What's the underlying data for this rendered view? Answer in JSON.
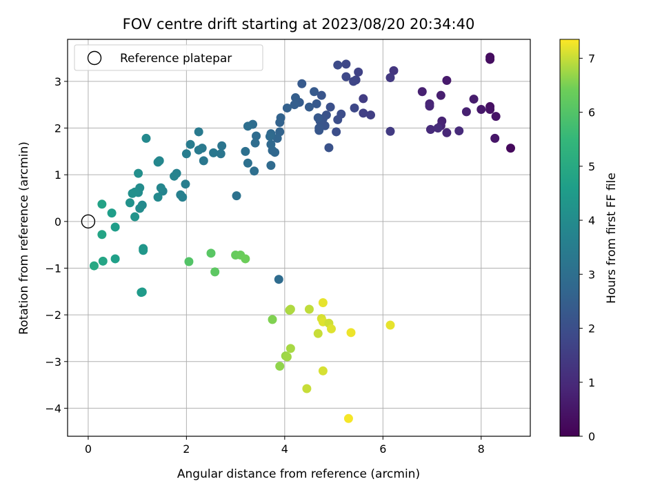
{
  "chart_data": {
    "type": "scatter",
    "title": "FOV centre drift starting at 2023/08/20 20:34:40",
    "xlabel": "Angular distance from reference (arcmin)",
    "ylabel": "Rotation from reference (arcmin)",
    "xlim": [
      -0.42,
      9.0
    ],
    "ylim": [
      -4.6,
      3.9
    ],
    "xticks": [
      0,
      2,
      4,
      6,
      8
    ],
    "yticks": [
      -4,
      -3,
      -2,
      -1,
      0,
      1,
      2,
      3
    ],
    "grid": true,
    "colormap": "viridis",
    "colorbar": {
      "label": "Hours from first FF file",
      "min": 0,
      "max": 7.35,
      "ticks": [
        0,
        1,
        2,
        3,
        4,
        5,
        6,
        7
      ]
    },
    "legend": {
      "position": "upper-left",
      "entries": [
        "Reference platepar"
      ]
    },
    "reference_point": {
      "x": 0,
      "y": 0
    },
    "points": [
      {
        "x": 8.18,
        "y": 3.52,
        "c": 0.25
      },
      {
        "x": 8.18,
        "y": 3.47,
        "c": 0.3
      },
      {
        "x": 8.18,
        "y": 2.46,
        "c": 0.35
      },
      {
        "x": 8.18,
        "y": 2.4,
        "c": 0.4
      },
      {
        "x": 8.3,
        "y": 2.25,
        "c": 0.45
      },
      {
        "x": 8.28,
        "y": 1.78,
        "c": 0.5
      },
      {
        "x": 8.6,
        "y": 1.57,
        "c": 0.2
      },
      {
        "x": 8.0,
        "y": 2.4,
        "c": 0.55
      },
      {
        "x": 7.85,
        "y": 2.62,
        "c": 0.65
      },
      {
        "x": 7.7,
        "y": 2.35,
        "c": 0.75
      },
      {
        "x": 7.3,
        "y": 3.02,
        "c": 0.6
      },
      {
        "x": 7.18,
        "y": 2.7,
        "c": 0.7
      },
      {
        "x": 7.2,
        "y": 2.15,
        "c": 0.8
      },
      {
        "x": 7.18,
        "y": 2.05,
        "c": 0.85
      },
      {
        "x": 7.3,
        "y": 1.9,
        "c": 0.9
      },
      {
        "x": 7.55,
        "y": 1.94,
        "c": 1.0
      },
      {
        "x": 6.95,
        "y": 2.52,
        "c": 0.85
      },
      {
        "x": 6.95,
        "y": 2.47,
        "c": 0.9
      },
      {
        "x": 6.97,
        "y": 1.97,
        "c": 1.0
      },
      {
        "x": 6.8,
        "y": 2.78,
        "c": 0.75
      },
      {
        "x": 7.12,
        "y": 2.0,
        "c": 1.05
      },
      {
        "x": 6.22,
        "y": 3.23,
        "c": 1.3
      },
      {
        "x": 6.15,
        "y": 3.08,
        "c": 1.4
      },
      {
        "x": 6.15,
        "y": 1.93,
        "c": 1.45
      },
      {
        "x": 5.75,
        "y": 2.28,
        "c": 1.55
      },
      {
        "x": 5.6,
        "y": 2.32,
        "c": 1.6
      },
      {
        "x": 5.6,
        "y": 2.63,
        "c": 1.5
      },
      {
        "x": 5.5,
        "y": 3.2,
        "c": 1.65
      },
      {
        "x": 5.45,
        "y": 3.03,
        "c": 1.7
      },
      {
        "x": 5.4,
        "y": 3.0,
        "c": 1.75
      },
      {
        "x": 5.42,
        "y": 2.43,
        "c": 1.8
      },
      {
        "x": 5.25,
        "y": 3.1,
        "c": 1.85
      },
      {
        "x": 5.25,
        "y": 3.37,
        "c": 1.8
      },
      {
        "x": 5.08,
        "y": 3.35,
        "c": 1.9
      },
      {
        "x": 5.15,
        "y": 2.3,
        "c": 1.95
      },
      {
        "x": 5.08,
        "y": 2.18,
        "c": 2.0
      },
      {
        "x": 5.05,
        "y": 1.92,
        "c": 2.0
      },
      {
        "x": 4.93,
        "y": 2.45,
        "c": 2.05
      },
      {
        "x": 4.9,
        "y": 1.58,
        "c": 2.1
      },
      {
        "x": 4.85,
        "y": 2.28,
        "c": 2.1
      },
      {
        "x": 4.82,
        "y": 2.05,
        "c": 2.15
      },
      {
        "x": 4.78,
        "y": 2.2,
        "c": 2.15
      },
      {
        "x": 4.75,
        "y": 2.7,
        "c": 2.2
      },
      {
        "x": 4.72,
        "y": 2.15,
        "c": 2.2
      },
      {
        "x": 4.7,
        "y": 1.95,
        "c": 2.25
      },
      {
        "x": 4.7,
        "y": 2.0,
        "c": 2.25
      },
      {
        "x": 4.68,
        "y": 2.22,
        "c": 2.3
      },
      {
        "x": 4.65,
        "y": 2.52,
        "c": 2.3
      },
      {
        "x": 4.6,
        "y": 2.78,
        "c": 2.35
      },
      {
        "x": 4.5,
        "y": 2.45,
        "c": 2.4
      },
      {
        "x": 4.35,
        "y": 2.95,
        "c": 2.35
      },
      {
        "x": 4.3,
        "y": 2.55,
        "c": 2.4
      },
      {
        "x": 4.22,
        "y": 2.65,
        "c": 2.45
      },
      {
        "x": 4.2,
        "y": 2.5,
        "c": 2.5
      },
      {
        "x": 4.05,
        "y": 2.43,
        "c": 2.55
      },
      {
        "x": 3.92,
        "y": 2.22,
        "c": 2.6
      },
      {
        "x": 3.9,
        "y": 2.12,
        "c": 2.6
      },
      {
        "x": 3.9,
        "y": 1.92,
        "c": 2.65
      },
      {
        "x": 3.85,
        "y": 1.78,
        "c": 2.7
      },
      {
        "x": 3.8,
        "y": 1.48,
        "c": 2.75
      },
      {
        "x": 3.75,
        "y": 1.52,
        "c": 2.75
      },
      {
        "x": 3.72,
        "y": 1.88,
        "c": 2.8
      },
      {
        "x": 3.72,
        "y": 1.65,
        "c": 2.8
      },
      {
        "x": 3.7,
        "y": 1.82,
        "c": 2.85
      },
      {
        "x": 3.72,
        "y": 1.2,
        "c": 2.85
      },
      {
        "x": 3.42,
        "y": 1.83,
        "c": 2.9
      },
      {
        "x": 3.4,
        "y": 1.68,
        "c": 2.95
      },
      {
        "x": 3.38,
        "y": 1.08,
        "c": 3.0
      },
      {
        "x": 3.35,
        "y": 2.08,
        "c": 2.95
      },
      {
        "x": 3.25,
        "y": 2.04,
        "c": 3.0
      },
      {
        "x": 3.25,
        "y": 1.25,
        "c": 3.05
      },
      {
        "x": 3.2,
        "y": 1.5,
        "c": 3.05
      },
      {
        "x": 3.02,
        "y": 0.55,
        "c": 3.1
      },
      {
        "x": 2.72,
        "y": 1.62,
        "c": 3.2
      },
      {
        "x": 2.7,
        "y": 1.45,
        "c": 3.25
      },
      {
        "x": 2.55,
        "y": 1.47,
        "c": 3.3
      },
      {
        "x": 2.35,
        "y": 1.3,
        "c": 3.3
      },
      {
        "x": 2.32,
        "y": 1.57,
        "c": 3.35
      },
      {
        "x": 2.25,
        "y": 1.92,
        "c": 3.4
      },
      {
        "x": 2.25,
        "y": 1.53,
        "c": 3.4
      },
      {
        "x": 2.08,
        "y": 1.65,
        "c": 3.45
      },
      {
        "x": 2.0,
        "y": 1.45,
        "c": 3.5
      },
      {
        "x": 1.98,
        "y": 0.8,
        "c": 3.55
      },
      {
        "x": 1.92,
        "y": 0.52,
        "c": 3.6
      },
      {
        "x": 1.88,
        "y": 0.57,
        "c": 3.6
      },
      {
        "x": 1.8,
        "y": 1.03,
        "c": 3.65
      },
      {
        "x": 1.75,
        "y": 0.97,
        "c": 3.7
      },
      {
        "x": 1.52,
        "y": 0.65,
        "c": 3.75
      },
      {
        "x": 1.48,
        "y": 0.72,
        "c": 3.8
      },
      {
        "x": 1.45,
        "y": 1.3,
        "c": 3.8
      },
      {
        "x": 1.42,
        "y": 1.27,
        "c": 3.85
      },
      {
        "x": 1.42,
        "y": 0.52,
        "c": 3.9
      },
      {
        "x": 1.18,
        "y": 1.78,
        "c": 3.9
      },
      {
        "x": 1.1,
        "y": 0.35,
        "c": 3.95
      },
      {
        "x": 1.05,
        "y": 0.72,
        "c": 4.0
      },
      {
        "x": 1.05,
        "y": 0.28,
        "c": 4.0
      },
      {
        "x": 1.02,
        "y": 0.62,
        "c": 4.05
      },
      {
        "x": 1.02,
        "y": 1.03,
        "c": 4.1
      },
      {
        "x": 0.95,
        "y": 0.63,
        "c": 4.1
      },
      {
        "x": 0.9,
        "y": 0.6,
        "c": 4.15
      },
      {
        "x": 0.85,
        "y": 0.4,
        "c": 4.2
      },
      {
        "x": 0.95,
        "y": 0.1,
        "c": 4.25
      },
      {
        "x": 1.12,
        "y": -0.58,
        "c": 4.3
      },
      {
        "x": 1.12,
        "y": -0.62,
        "c": 4.35
      },
      {
        "x": 1.08,
        "y": -1.52,
        "c": 4.5
      },
      {
        "x": 1.1,
        "y": -1.51,
        "c": 4.5
      },
      {
        "x": 0.55,
        "y": -0.12,
        "c": 4.55
      },
      {
        "x": 0.48,
        "y": 0.18,
        "c": 4.6
      },
      {
        "x": 0.55,
        "y": -0.8,
        "c": 4.65
      },
      {
        "x": 0.28,
        "y": 0.37,
        "c": 4.75
      },
      {
        "x": 0.28,
        "y": -0.28,
        "c": 4.8
      },
      {
        "x": 0.3,
        "y": -0.85,
        "c": 4.85
      },
      {
        "x": 0.12,
        "y": -0.95,
        "c": 4.95
      },
      {
        "x": 2.05,
        "y": -0.86,
        "c": 6.0
      },
      {
        "x": 2.5,
        "y": -0.68,
        "c": 6.1
      },
      {
        "x": 2.58,
        "y": -1.08,
        "c": 6.15
      },
      {
        "x": 3.0,
        "y": -0.72,
        "c": 6.3
      },
      {
        "x": 3.1,
        "y": -0.72,
        "c": 6.35
      },
      {
        "x": 3.2,
        "y": -0.8,
        "c": 6.4
      },
      {
        "x": 3.75,
        "y": -2.1,
        "c": 6.55
      },
      {
        "x": 3.88,
        "y": -1.24,
        "c": 2.9
      },
      {
        "x": 3.9,
        "y": -3.1,
        "c": 6.65
      },
      {
        "x": 4.02,
        "y": -2.88,
        "c": 6.7
      },
      {
        "x": 4.05,
        "y": -2.9,
        "c": 6.75
      },
      {
        "x": 4.1,
        "y": -1.9,
        "c": 6.8
      },
      {
        "x": 4.12,
        "y": -1.88,
        "c": 6.85
      },
      {
        "x": 4.12,
        "y": -2.72,
        "c": 6.8
      },
      {
        "x": 4.45,
        "y": -3.58,
        "c": 7.0
      },
      {
        "x": 4.5,
        "y": -1.88,
        "c": 6.95
      },
      {
        "x": 4.68,
        "y": -2.4,
        "c": 7.0
      },
      {
        "x": 4.78,
        "y": -1.74,
        "c": 7.2
      },
      {
        "x": 4.75,
        "y": -2.08,
        "c": 7.1
      },
      {
        "x": 4.78,
        "y": -2.15,
        "c": 7.15
      },
      {
        "x": 4.78,
        "y": -3.2,
        "c": 7.1
      },
      {
        "x": 4.9,
        "y": -2.18,
        "c": 7.05
      },
      {
        "x": 4.95,
        "y": -2.3,
        "c": 7.15
      },
      {
        "x": 5.3,
        "y": -4.22,
        "c": 7.3
      },
      {
        "x": 5.35,
        "y": -2.38,
        "c": 7.25
      },
      {
        "x": 6.15,
        "y": -2.22,
        "c": 7.2
      }
    ]
  }
}
